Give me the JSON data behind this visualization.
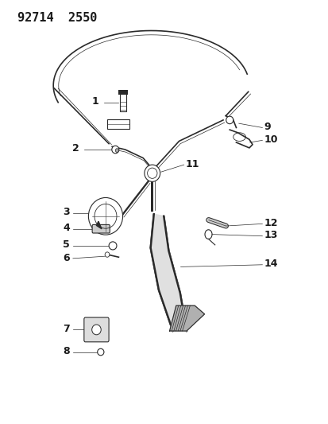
{
  "title": "92714  2550",
  "bg_color": "#ffffff",
  "line_color": "#2a2a2a",
  "text_color": "#1a1a1a",
  "title_fontsize": 11,
  "label_fontsize": 9,
  "fig_width": 4.14,
  "fig_height": 5.33,
  "dpi": 100
}
